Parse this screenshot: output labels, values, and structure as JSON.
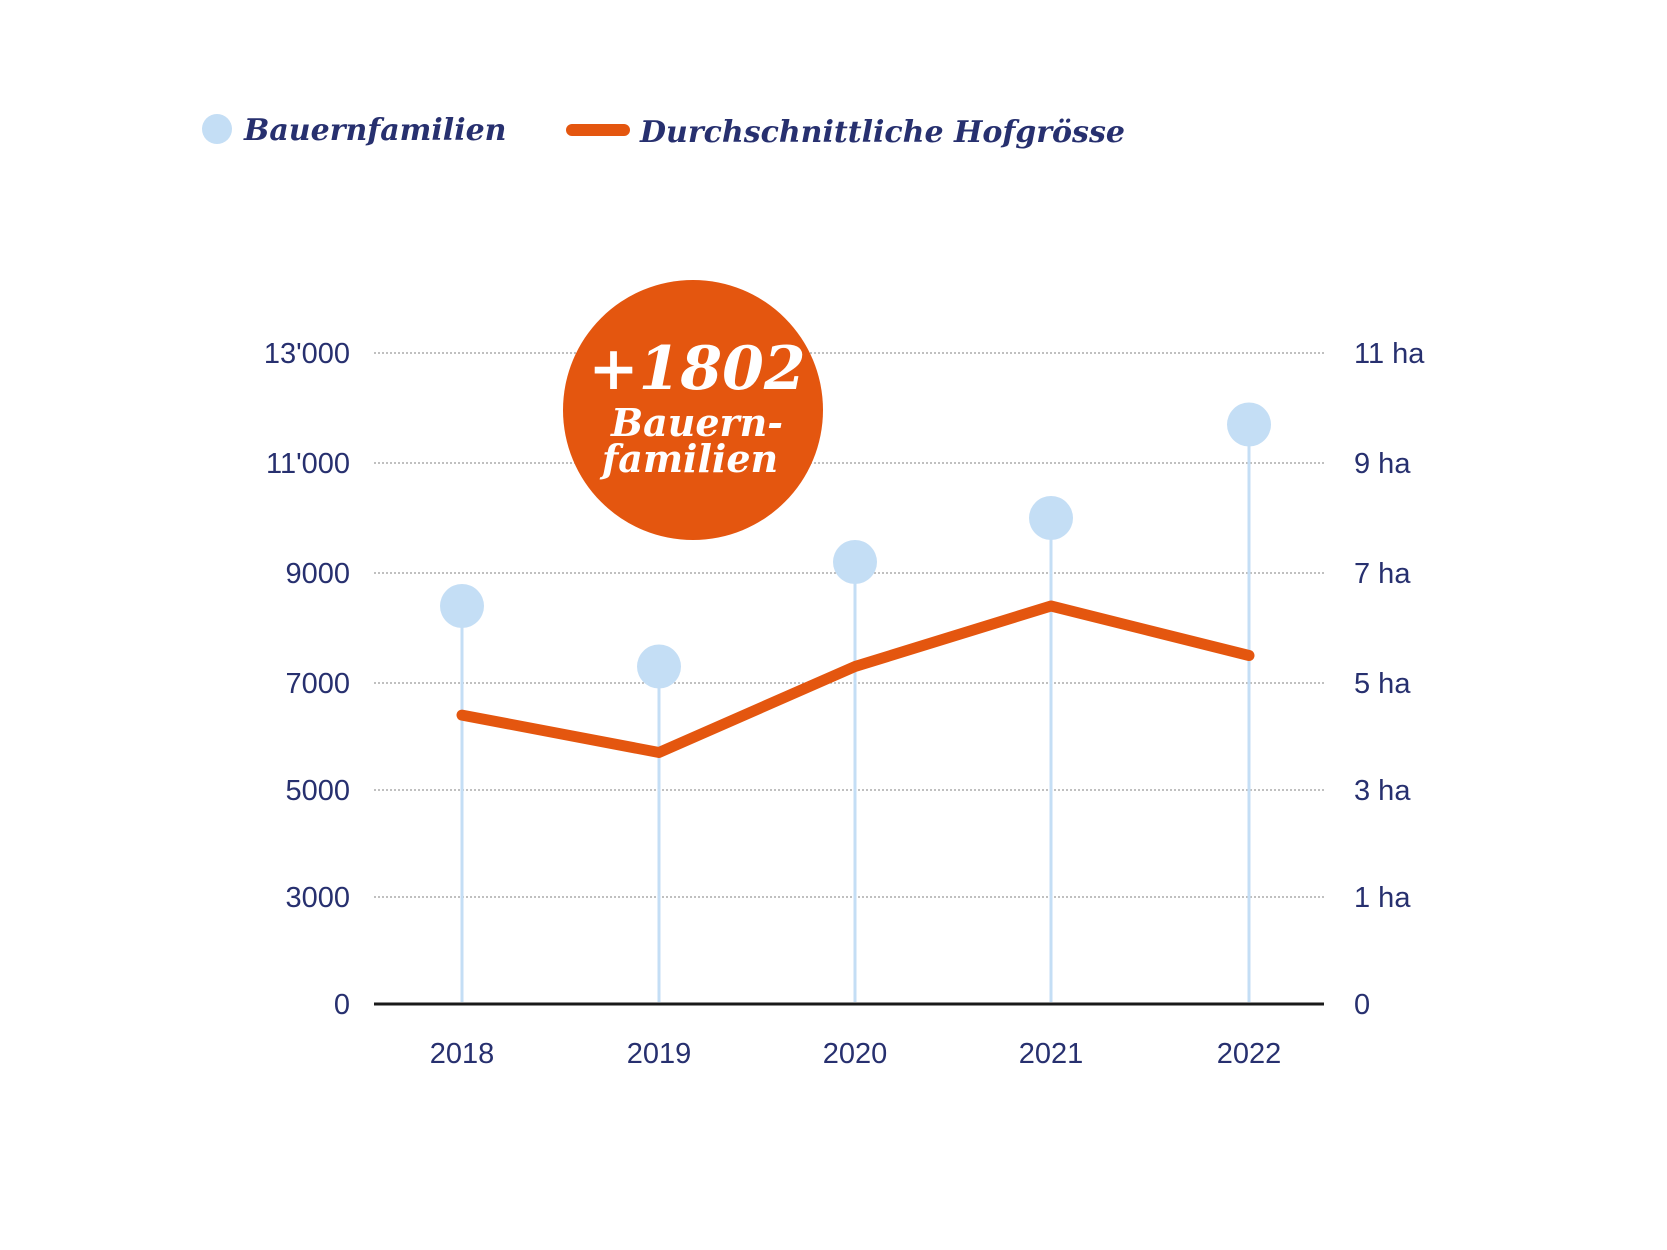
{
  "chart_data": {
    "type": "line",
    "categories": [
      "2018",
      "2019",
      "2020",
      "2021",
      "2022"
    ],
    "series": [
      {
        "name": "Bauernfamilien",
        "axis": "left",
        "style": "lollipop",
        "values": [
          8400,
          7300,
          9200,
          10000,
          11700
        ]
      },
      {
        "name": "Durchschnittliche Hofgrösse",
        "axis": "right",
        "style": "line",
        "values": [
          4.4,
          3.7,
          5.3,
          6.4,
          5.5
        ]
      }
    ],
    "y_left": {
      "ticks": [
        0,
        3000,
        5000,
        7000,
        9000,
        11000,
        13000
      ],
      "tick_labels": [
        "0",
        "3000",
        "5000",
        "7000",
        "9000",
        "11'000",
        "13'000"
      ]
    },
    "y_right": {
      "ticks": [
        0,
        1,
        3,
        5,
        7,
        9,
        11
      ],
      "tick_labels": [
        "0",
        "1 ha",
        "3 ha",
        "5 ha",
        "7 ha",
        "9 ha",
        "11 ha"
      ]
    },
    "annotation": {
      "value": "+1802",
      "label_line1": "Bauern-",
      "label_line2": "familien"
    },
    "legend": [
      {
        "name": "Bauernfamilien",
        "marker": "dot"
      },
      {
        "name": "Durchschnittliche Hofgrösse",
        "marker": "line"
      }
    ],
    "legend_position": "top-left",
    "grid": "dotted-horizontal",
    "colors": {
      "dot": "#c4def5",
      "stem": "#c4def5",
      "line": "#e4560f",
      "text": "#27306f",
      "callout": "#e4560f",
      "axis": "#1a1a1a",
      "grid": "#9a9a9a"
    }
  }
}
